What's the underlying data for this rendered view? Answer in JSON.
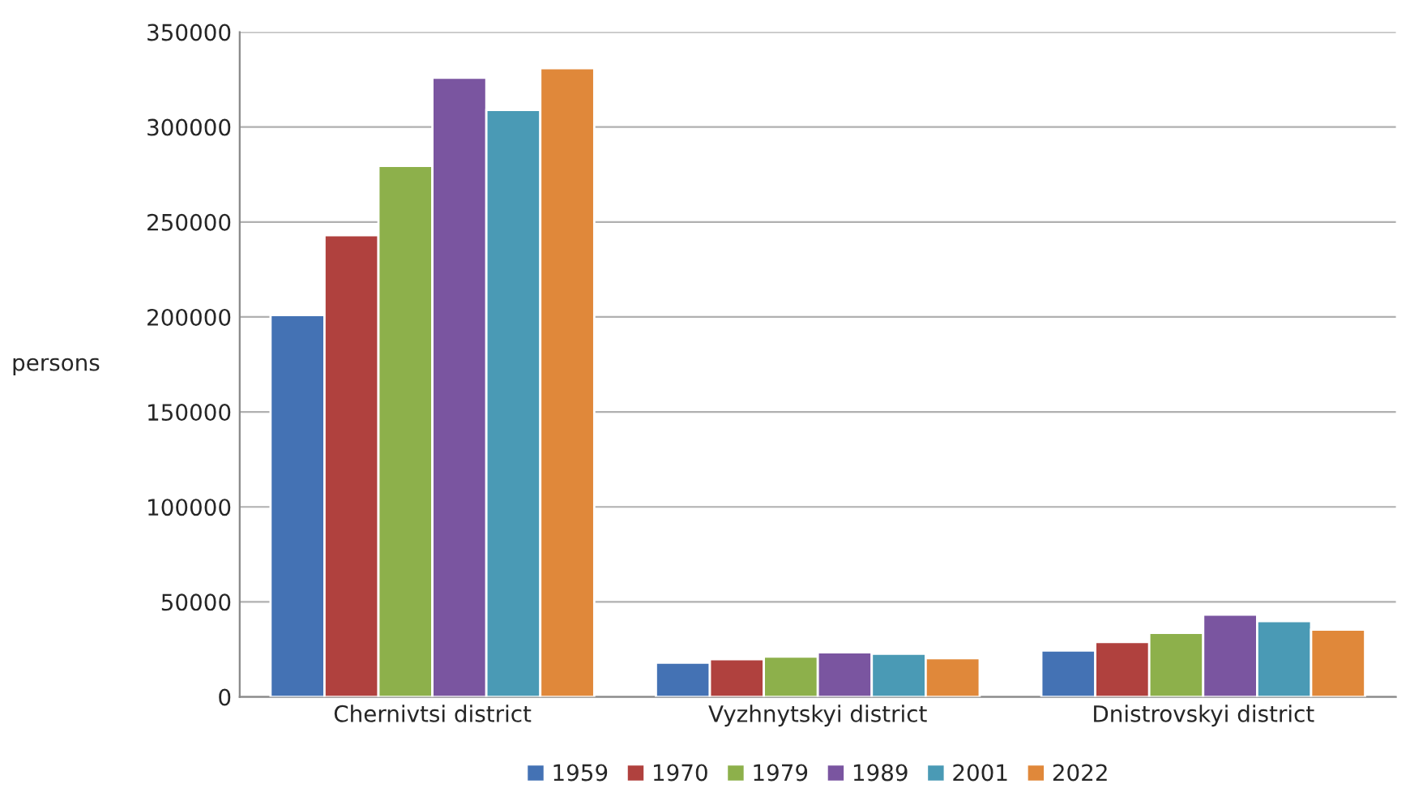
{
  "chart_data": {
    "type": "bar",
    "ylabel": "persons",
    "categories": [
      "Chernivtsi district",
      "Vyzhnytskyi district",
      "Dnistrovskyi district"
    ],
    "series": [
      {
        "name": "1959",
        "color": "#4472b4",
        "values": [
          201000,
          18000,
          24400
        ]
      },
      {
        "name": "1970",
        "color": "#b0413e",
        "values": [
          243000,
          19800,
          28900
        ]
      },
      {
        "name": "1979",
        "color": "#8db04b",
        "values": [
          279500,
          21200,
          33700
        ]
      },
      {
        "name": "1989",
        "color": "#7a55a0",
        "values": [
          326000,
          23500,
          43300
        ]
      },
      {
        "name": "2001",
        "color": "#4a9ab5",
        "values": [
          309000,
          22700,
          39900
        ]
      },
      {
        "name": "2022",
        "color": "#e0883a",
        "values": [
          331000,
          20400,
          35400
        ]
      }
    ],
    "ylim": [
      0,
      350000
    ],
    "yticks": [
      0,
      50000,
      100000,
      150000,
      200000,
      250000,
      300000,
      350000
    ],
    "grid": "y",
    "legend": "bottom"
  }
}
